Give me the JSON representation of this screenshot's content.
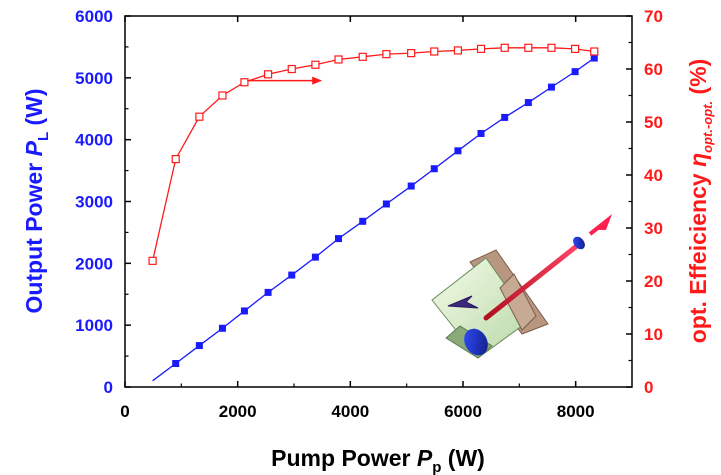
{
  "colors": {
    "left_axis": "#1a1aff",
    "right_axis": "#ff1a1a",
    "axis": "#000000",
    "background": "#ffffff"
  },
  "chart_data": {
    "type": "line",
    "xlabel": {
      "text": "Pump Power ",
      "var": "P",
      "sub": "p",
      "unit": " (W)"
    },
    "ylabel_left": {
      "text": "Output Power ",
      "var": "P",
      "sub": "L",
      "unit": " (W)"
    },
    "ylabel_right": {
      "text": "opt. Effeiciency ",
      "var": "η",
      "sub": "opt.-opt.",
      "unit": " (%)"
    },
    "xlim": [
      0,
      9000
    ],
    "ylim_left": [
      0,
      6000
    ],
    "ylim_right": [
      0,
      70
    ],
    "xticks": [
      0,
      2000,
      4000,
      6000,
      8000
    ],
    "yticks_left": [
      0,
      1000,
      2000,
      3000,
      4000,
      5000,
      6000
    ],
    "yticks_right": [
      0,
      10,
      20,
      30,
      40,
      50,
      60,
      70
    ],
    "grid": false,
    "series": [
      {
        "axis": "left",
        "marker": "filled-square",
        "color": "#1a1aff",
        "x": [
          900,
          1320,
          1730,
          2120,
          2540,
          2960,
          3380,
          3790,
          4220,
          4640,
          5080,
          5490,
          5910,
          6320,
          6740,
          7160,
          7570,
          7990,
          8330
        ],
        "y": [
          380,
          670,
          950,
          1230,
          1530,
          1810,
          2100,
          2400,
          2680,
          2960,
          3250,
          3530,
          3820,
          4100,
          4360,
          4600,
          4850,
          5100,
          5320
        ]
      },
      {
        "axis": "right",
        "marker": "open-square",
        "color": "#ff1a1a",
        "x": [
          490,
          900,
          1320,
          1730,
          2120,
          2540,
          2960,
          3380,
          3790,
          4220,
          4640,
          5080,
          5490,
          5910,
          6320,
          6740,
          7160,
          7570,
          7990,
          8330
        ],
        "y": [
          23.8,
          43,
          51,
          55,
          57.5,
          59,
          60,
          60.8,
          61.8,
          62.3,
          62.8,
          63,
          63.3,
          63.5,
          63.8,
          64,
          64,
          64,
          63.8,
          63.3
        ]
      }
    ],
    "annotations": [
      {
        "type": "arrow",
        "color": "#ff1a1a",
        "from": [
          2170,
          57.8
        ],
        "to": [
          3500,
          57.8
        ],
        "meaning": "red curve belongs to right axis"
      }
    ]
  },
  "inset": {
    "description_icon": "laser-cavity-icon"
  }
}
